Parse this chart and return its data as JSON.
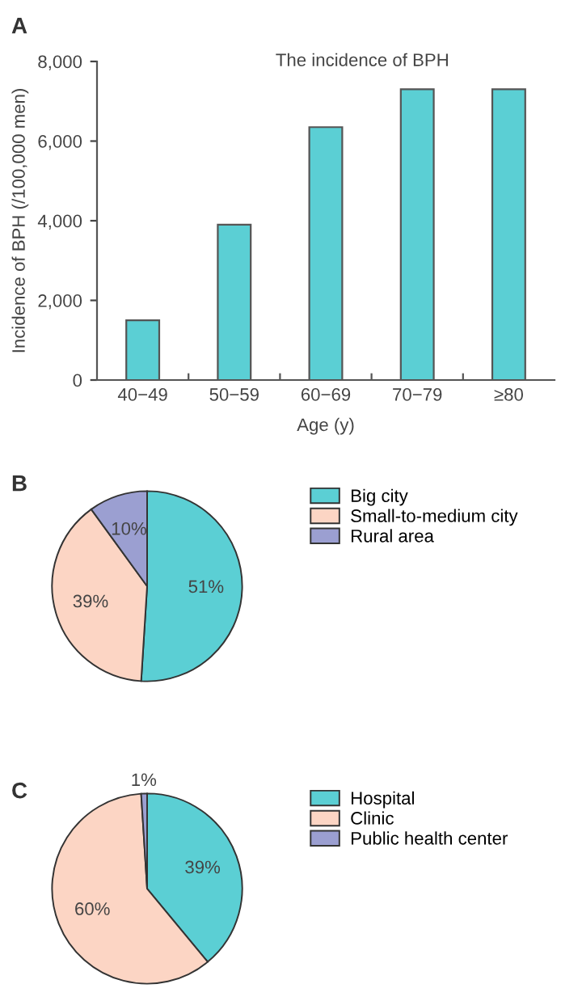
{
  "chart_data": [
    {
      "type": "bar",
      "title": "The incidence of BPH",
      "xlabel": "Age (y)",
      "ylabel": "Incidence of BPH (/100,000 men)",
      "annotations": [
        "A"
      ],
      "categories": [
        "40−49",
        "50−59",
        "60−69",
        "70−79",
        "≥80"
      ],
      "values": [
        1500,
        3900,
        6350,
        7300,
        7300
      ],
      "color": "#5bcfd4",
      "ylim": [
        0,
        8000
      ],
      "yticks": [
        {
          "value": 0,
          "label": "0"
        },
        {
          "value": 2000,
          "label": "2,000"
        },
        {
          "value": 4000,
          "label": "4,000"
        },
        {
          "value": 6000,
          "label": "6,000"
        },
        {
          "value": 8000,
          "label": "8,000"
        }
      ],
      "grid": false
    },
    {
      "type": "pie",
      "annotations": [
        "B"
      ],
      "categories": [
        "Big city",
        "Small-to-medium city",
        "Rural area"
      ],
      "values": [
        51,
        39,
        10
      ],
      "value_labels": [
        "51%",
        "39%",
        "10%"
      ],
      "colors": [
        "#5bcfd4",
        "#fcd5c4",
        "#9b9fd1"
      ],
      "legend": "right"
    },
    {
      "type": "pie",
      "annotations": [
        "C"
      ],
      "categories": [
        "Hospital",
        "Clinic",
        "Public health center"
      ],
      "values": [
        39,
        60,
        1
      ],
      "value_labels": [
        "39%",
        "60%",
        "1%"
      ],
      "colors": [
        "#5bcfd4",
        "#fcd5c4",
        "#9b9fd1"
      ],
      "legend": "right"
    }
  ]
}
